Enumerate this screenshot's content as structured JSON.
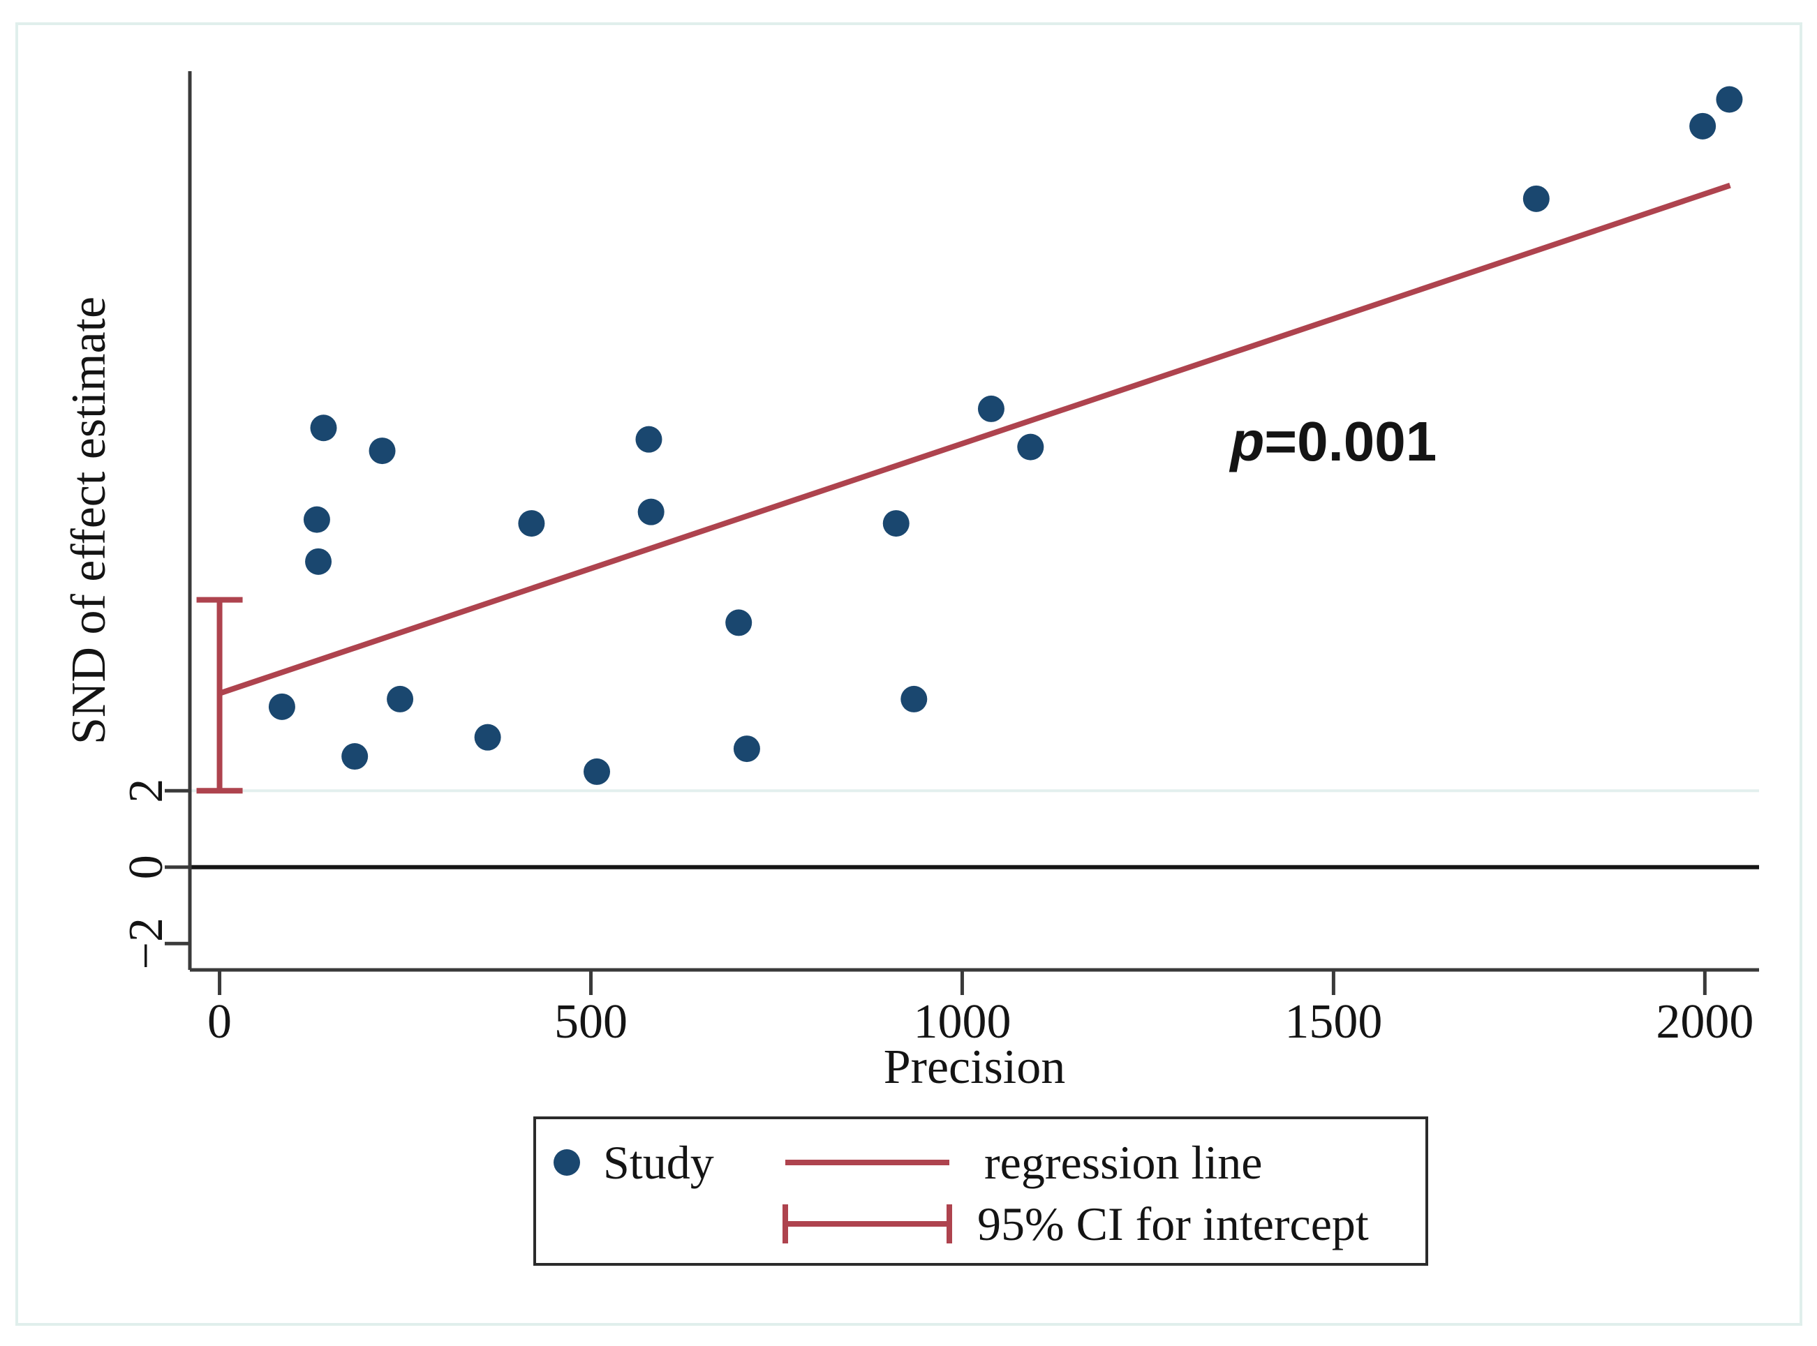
{
  "chart_data": {
    "type": "scatter",
    "title": "",
    "xlabel": "Precision",
    "ylabel": "SND of effect estimate",
    "xlim": [
      -40,
      2073
    ],
    "ylim": [
      -2.69,
      20.84
    ],
    "x_ticks": [
      0,
      500,
      1000,
      1500,
      2000
    ],
    "x_tick_labels": [
      "0",
      "500",
      "1000",
      "1500",
      "2000"
    ],
    "y_ticks": [
      -2,
      0,
      2
    ],
    "y_tick_labels": [
      "−2",
      "0",
      "2"
    ],
    "grid": "off",
    "legend_position": "bottom-center",
    "reference_lines": [
      {
        "y": 0,
        "style": "solid-dark"
      },
      {
        "y": 2,
        "style": "light"
      }
    ],
    "series": [
      {
        "name": "Study",
        "type": "scatter",
        "points": [
          [
            84,
            4.2
          ],
          [
            131,
            9.1
          ],
          [
            133,
            8.0
          ],
          [
            140,
            11.5
          ],
          [
            182,
            2.9
          ],
          [
            219,
            10.9
          ],
          [
            243,
            4.4
          ],
          [
            361,
            3.4
          ],
          [
            420,
            9.0
          ],
          [
            508,
            2.5
          ],
          [
            578,
            11.2
          ],
          [
            581,
            9.3
          ],
          [
            699,
            6.4
          ],
          [
            710,
            3.1
          ],
          [
            911,
            9.0
          ],
          [
            935,
            4.4
          ],
          [
            1039,
            12.0
          ],
          [
            1092,
            11.0
          ],
          [
            1773,
            17.5
          ],
          [
            1997,
            19.4
          ],
          [
            2033,
            20.1
          ]
        ]
      }
    ],
    "regression_line": {
      "x0": 0,
      "y0": 4.55,
      "x1": 2034,
      "y1": 17.85
    },
    "ci_intercept": {
      "x": 0,
      "low": 2.0,
      "high": 7.0
    },
    "annotation": {
      "p_label": "p",
      "value_label": "=0.001",
      "x": 1500,
      "y": 10.9
    },
    "colors": {
      "point": "#1a476f",
      "regression_line": "#ae434e",
      "ci_bar": "#ae434e",
      "axis": "#3a3a3a",
      "zero_line": "#161616",
      "gridline_y2": "#e3efee",
      "figure_frame": "#e0efec"
    }
  },
  "legend": {
    "items": [
      {
        "symbol": "dot-icon",
        "label": "Study"
      },
      {
        "symbol": "line-icon",
        "label": "regression line"
      },
      {
        "symbol": "ci-bar-icon",
        "label": "95% CI for intercept"
      }
    ]
  }
}
